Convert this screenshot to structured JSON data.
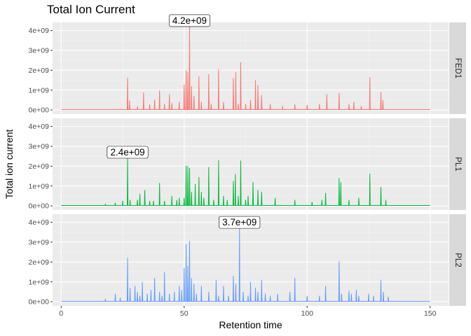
{
  "chart_data": {
    "type": "line",
    "title": "Total Ion Current",
    "xlabel": "Retention time",
    "ylabel": "Total ion current",
    "xlim": [
      -3.5,
      157.5
    ],
    "ylim": [
      -210000000,
      4410000000
    ],
    "x_ticks": [
      0,
      50,
      100,
      150
    ],
    "x_tick_labels": [
      "0",
      "50",
      "100",
      "150"
    ],
    "y_ticks": [
      0,
      1000000000,
      2000000000,
      3000000000,
      4000000000
    ],
    "y_tick_labels": [
      "0e+00",
      "1e+09",
      "2e+09",
      "3e+09",
      "4e+09"
    ],
    "facet_layout": "vertical",
    "strip_position": "right",
    "grid": true,
    "legend": "none",
    "series": [
      {
        "name": "FED1",
        "color": "#F8766D",
        "baseline": 20000000,
        "x_range": [
          0,
          150
        ],
        "peaks": [
          [
            27.0,
            1620000000
          ],
          [
            27.8,
            480000000
          ],
          [
            31.0,
            180000000
          ],
          [
            33.5,
            880000000
          ],
          [
            36.0,
            280000000
          ],
          [
            38.0,
            520000000
          ],
          [
            40.0,
            980000000
          ],
          [
            42.0,
            300000000
          ],
          [
            44.0,
            780000000
          ],
          [
            45.0,
            350000000
          ],
          [
            48.0,
            400000000
          ],
          [
            50.0,
            1280000000
          ],
          [
            50.8,
            2000000000
          ],
          [
            51.5,
            1900000000
          ],
          [
            52.2,
            4200000000
          ],
          [
            53.0,
            1200000000
          ],
          [
            54.0,
            700000000
          ],
          [
            56.0,
            1700000000
          ],
          [
            57.0,
            400000000
          ],
          [
            60.0,
            1800000000
          ],
          [
            61.0,
            300000000
          ],
          [
            64.0,
            2050000000
          ],
          [
            66.0,
            400000000
          ],
          [
            70.0,
            1600000000
          ],
          [
            71.0,
            1900000000
          ],
          [
            72.0,
            300000000
          ],
          [
            73.0,
            2400000000
          ],
          [
            75.0,
            300000000
          ],
          [
            77.0,
            500000000
          ],
          [
            79.0,
            1500000000
          ],
          [
            80.0,
            1250000000
          ],
          [
            81.5,
            750000000
          ],
          [
            85.0,
            300000000
          ],
          [
            90.0,
            200000000
          ],
          [
            95.0,
            280000000
          ],
          [
            100.0,
            250000000
          ],
          [
            105.0,
            300000000
          ],
          [
            108.0,
            800000000
          ],
          [
            113.0,
            850000000
          ],
          [
            117.0,
            300000000
          ],
          [
            119.0,
            400000000
          ],
          [
            122.0,
            200000000
          ],
          [
            125.5,
            1650000000
          ],
          [
            130.0,
            900000000
          ],
          [
            130.8,
            500000000
          ]
        ],
        "label": {
          "x": 52.2,
          "y": 4200000000,
          "text": "4.2e+09"
        }
      },
      {
        "name": "PL1",
        "color": "#00BA38",
        "baseline": 20000000,
        "x_range": [
          0,
          150
        ],
        "peaks": [
          [
            18.0,
            100000000
          ],
          [
            22.0,
            150000000
          ],
          [
            25.0,
            250000000
          ],
          [
            27.0,
            2400000000
          ],
          [
            28.0,
            300000000
          ],
          [
            31.0,
            300000000
          ],
          [
            32.0,
            600000000
          ],
          [
            34.0,
            800000000
          ],
          [
            36.0,
            250000000
          ],
          [
            37.5,
            250000000
          ],
          [
            40.0,
            1150000000
          ],
          [
            42.0,
            250000000
          ],
          [
            45.0,
            500000000
          ],
          [
            47.0,
            300000000
          ],
          [
            48.0,
            400000000
          ],
          [
            50.0,
            400000000
          ],
          [
            50.8,
            2020000000
          ],
          [
            51.5,
            2000000000
          ],
          [
            52.2,
            1900000000
          ],
          [
            53.0,
            700000000
          ],
          [
            54.5,
            1100000000
          ],
          [
            56.0,
            1450000000
          ],
          [
            57.0,
            700000000
          ],
          [
            58.0,
            400000000
          ],
          [
            60.0,
            1950000000
          ],
          [
            62.0,
            300000000
          ],
          [
            64.0,
            2300000000
          ],
          [
            66.0,
            500000000
          ],
          [
            67.5,
            300000000
          ],
          [
            70.0,
            1250000000
          ],
          [
            70.8,
            1600000000
          ],
          [
            72.0,
            500000000
          ],
          [
            73.0,
            2280000000
          ],
          [
            75.0,
            300000000
          ],
          [
            76.0,
            500000000
          ],
          [
            78.0,
            1200000000
          ],
          [
            80.0,
            800000000
          ],
          [
            81.5,
            700000000
          ],
          [
            87.0,
            400000000
          ],
          [
            95.0,
            300000000
          ],
          [
            102.0,
            200000000
          ],
          [
            106.0,
            300000000
          ],
          [
            107.5,
            650000000
          ],
          [
            113.0,
            1400000000
          ],
          [
            113.7,
            1180000000
          ],
          [
            117.0,
            300000000
          ],
          [
            121.0,
            400000000
          ],
          [
            125.5,
            1620000000
          ],
          [
            130.0,
            950000000
          ],
          [
            132.0,
            300000000
          ]
        ],
        "label": {
          "x": 27.0,
          "y": 2400000000,
          "text": "2.4e+09"
        }
      },
      {
        "name": "PL2",
        "color": "#619CFF",
        "baseline": 20000000,
        "x_range": [
          0,
          150
        ],
        "peaks": [
          [
            18.0,
            150000000
          ],
          [
            22.0,
            400000000
          ],
          [
            24.0,
            200000000
          ],
          [
            27.0,
            2200000000
          ],
          [
            28.0,
            700000000
          ],
          [
            30.0,
            800000000
          ],
          [
            31.0,
            500000000
          ],
          [
            32.0,
            300000000
          ],
          [
            33.0,
            1000000000
          ],
          [
            35.0,
            400000000
          ],
          [
            36.5,
            600000000
          ],
          [
            38.0,
            1200000000
          ],
          [
            40.0,
            500000000
          ],
          [
            41.0,
            300000000
          ],
          [
            42.0,
            1500000000
          ],
          [
            44.0,
            400000000
          ],
          [
            46.0,
            500000000
          ],
          [
            48.0,
            800000000
          ],
          [
            49.0,
            600000000
          ],
          [
            50.0,
            1700000000
          ],
          [
            50.8,
            2900000000
          ],
          [
            51.5,
            1800000000
          ],
          [
            52.2,
            3050000000
          ],
          [
            53.0,
            1200000000
          ],
          [
            54.0,
            900000000
          ],
          [
            55.0,
            400000000
          ],
          [
            57.0,
            800000000
          ],
          [
            60.0,
            500000000
          ],
          [
            63.0,
            1100000000
          ],
          [
            64.0,
            300000000
          ],
          [
            66.0,
            800000000
          ],
          [
            68.0,
            300000000
          ],
          [
            70.0,
            1300000000
          ],
          [
            71.0,
            900000000
          ],
          [
            72.5,
            3700000000
          ],
          [
            74.0,
            500000000
          ],
          [
            76.0,
            300000000
          ],
          [
            77.0,
            1000000000
          ],
          [
            79.0,
            700000000
          ],
          [
            80.0,
            500000000
          ],
          [
            81.5,
            1100000000
          ],
          [
            83.0,
            400000000
          ],
          [
            85.0,
            300000000
          ],
          [
            88.0,
            400000000
          ],
          [
            93.0,
            500000000
          ],
          [
            95.0,
            1200000000
          ],
          [
            100.0,
            300000000
          ],
          [
            105.0,
            300000000
          ],
          [
            107.5,
            800000000
          ],
          [
            113.0,
            2050000000
          ],
          [
            114.0,
            400000000
          ],
          [
            117.0,
            550000000
          ],
          [
            118.0,
            400000000
          ],
          [
            120.0,
            600000000
          ],
          [
            121.0,
            300000000
          ],
          [
            125.0,
            400000000
          ],
          [
            127.0,
            300000000
          ],
          [
            130.0,
            1100000000
          ],
          [
            131.0,
            500000000
          ],
          [
            133.0,
            250000000
          ]
        ],
        "label": {
          "x": 72.5,
          "y": 3700000000,
          "text": "3.7e+09"
        }
      }
    ]
  }
}
